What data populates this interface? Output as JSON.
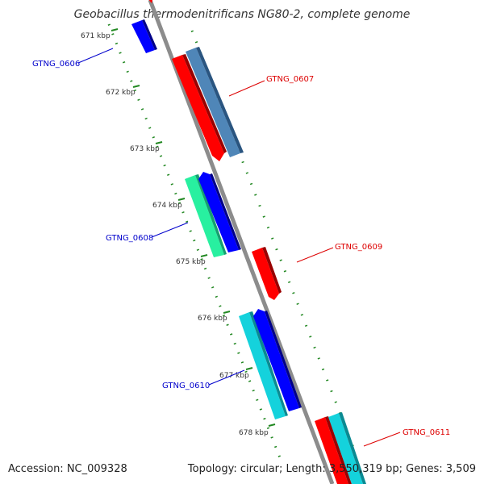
{
  "title": "Geobacillus thermodenitrificans NG80-2, complete genome",
  "accession_text": "Accession: NC_009328",
  "stats_text": "Topology: circular; Length: 3,550,319 bp; Genes: 3,509",
  "ruler": {
    "tick_labels": [
      "671 kbp",
      "672 kbp",
      "673 kbp",
      "674 kbp",
      "675 kbp",
      "676 kbp",
      "677 kbp",
      "678 kbp"
    ]
  },
  "genes": [
    {
      "name": "GTNG_0606",
      "strand": "reverse",
      "label_color": "#0000cc"
    },
    {
      "name": "GTNG_0607",
      "strand": "forward",
      "label_color": "#dd0000"
    },
    {
      "name": "GTNG_0608",
      "strand": "reverse",
      "label_color": "#0000cc"
    },
    {
      "name": "GTNG_0609",
      "strand": "forward",
      "label_color": "#dd0000"
    },
    {
      "name": "GTNG_0610",
      "strand": "reverse",
      "label_color": "#0000cc"
    },
    {
      "name": "GTNG_0611",
      "strand": "forward",
      "label_color": "#dd0000"
    }
  ],
  "colors": {
    "backbone": "#8c8c8c",
    "cds_forward": "#ff0000",
    "cds_reverse": "#0000ff",
    "orf_steelblue": "#4f86b8",
    "orf_spring": "#28f0a0",
    "orf_cyan": "#14d2dc",
    "tick_dots": "#228822"
  }
}
